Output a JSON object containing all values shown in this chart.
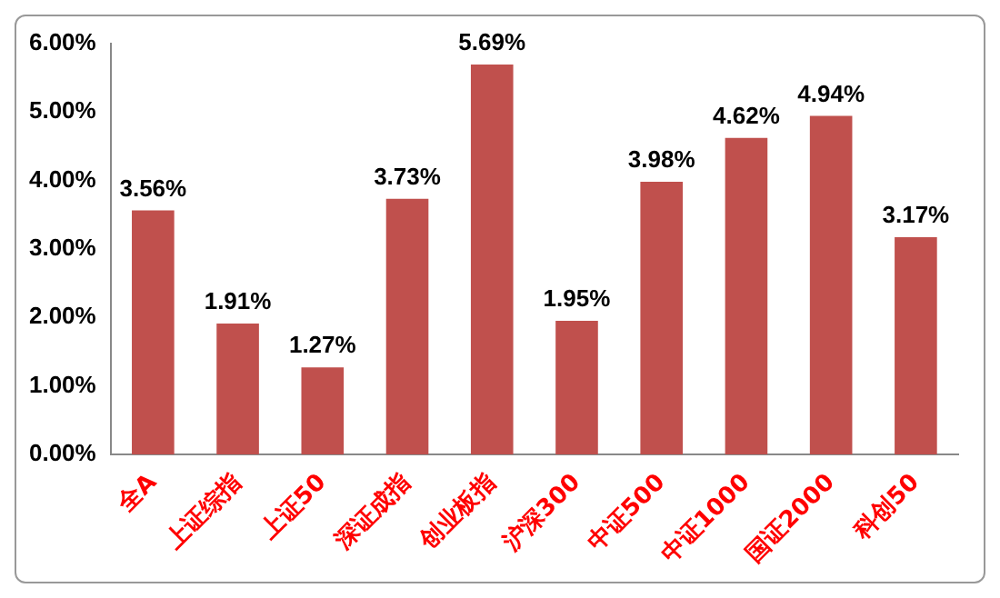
{
  "chart_data": {
    "type": "bar",
    "categories": [
      "全A",
      "上证综指",
      "上证50",
      "深证成指",
      "创业板指",
      "沪深300",
      "中证500",
      "中证1000",
      "国证2000",
      "科创50"
    ],
    "values": [
      3.56,
      1.91,
      1.27,
      3.73,
      5.69,
      1.95,
      3.98,
      4.62,
      4.94,
      3.17
    ],
    "value_labels": [
      "3.56%",
      "1.91%",
      "1.27%",
      "3.73%",
      "5.69%",
      "1.95%",
      "3.98%",
      "4.62%",
      "4.94%",
      "3.17%"
    ],
    "color": "#c0504d",
    "ylim": [
      0,
      6
    ],
    "yticks": [
      {
        "value": 0,
        "label": "0.00%"
      },
      {
        "value": 1,
        "label": "1.00%"
      },
      {
        "value": 2,
        "label": "2.00%"
      },
      {
        "value": 3,
        "label": "3.00%"
      },
      {
        "value": 4,
        "label": "4.00%"
      },
      {
        "value": 5,
        "label": "5.00%"
      },
      {
        "value": 6,
        "label": "6.00%"
      }
    ],
    "grid": false,
    "legend": false
  }
}
